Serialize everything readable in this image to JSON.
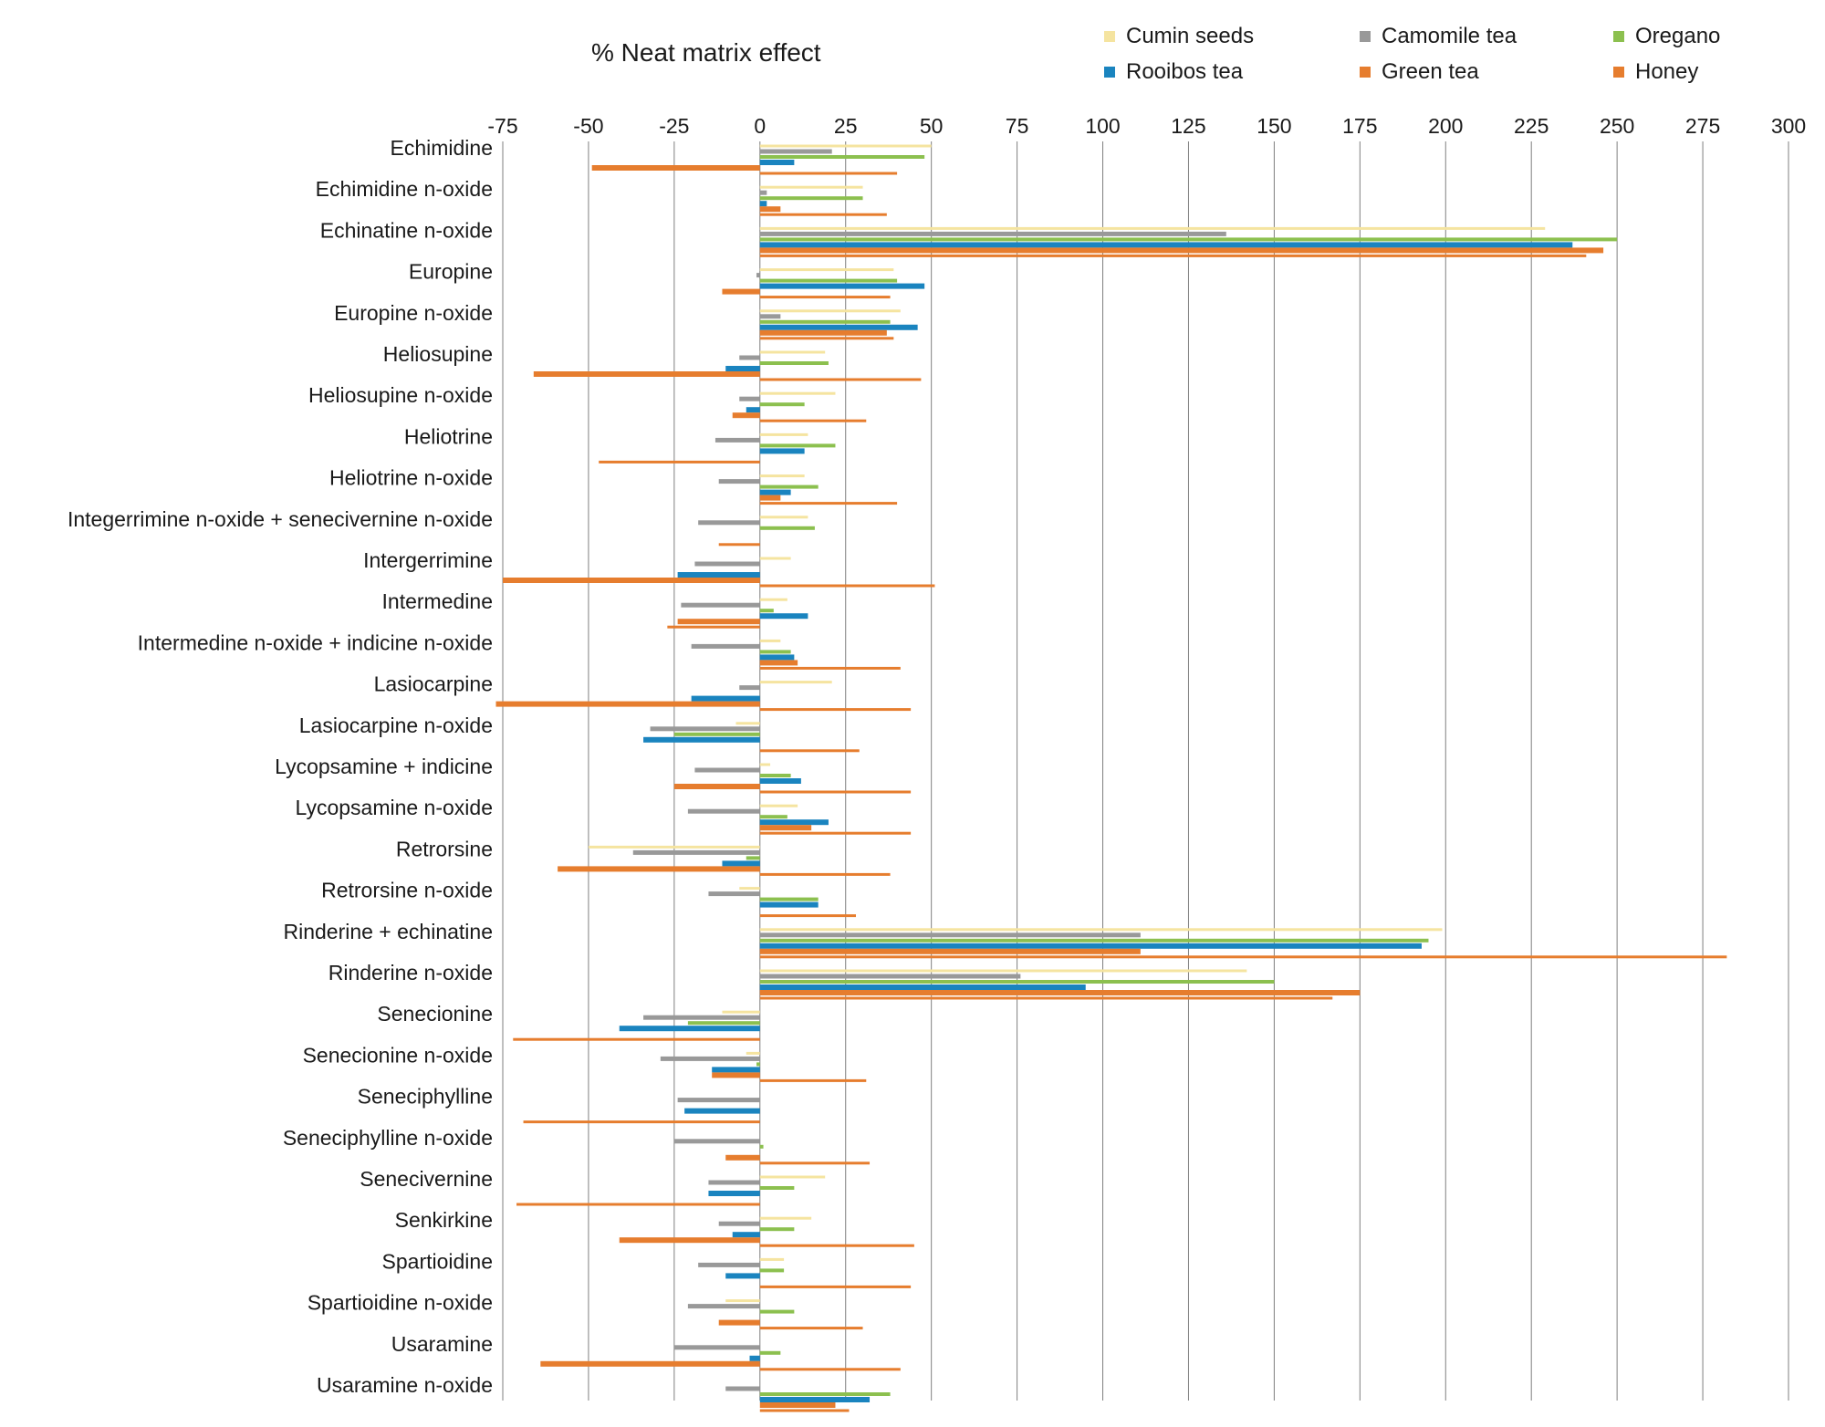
{
  "chart_data": {
    "type": "bar",
    "orientation": "horizontal",
    "title": "% Neat matrix effect",
    "xlabel": "",
    "ylabel": "",
    "xlim": [
      -75,
      300
    ],
    "xticks": [
      -75,
      -50,
      -25,
      0,
      25,
      50,
      75,
      100,
      125,
      150,
      175,
      200,
      225,
      250,
      275,
      300
    ],
    "xtick_labels": [
      "-75",
      "-50",
      "-25",
      "0",
      "25",
      "50",
      "75",
      "100",
      "125",
      "150",
      "175",
      "200",
      "225",
      "250",
      "275",
      "300"
    ],
    "grid": "vertical",
    "legend_position": "top-right",
    "categories": [
      "Echimidine",
      "Echimidine n-oxide",
      "Echinatine n-oxide",
      "Europine",
      "Europine n-oxide",
      "Heliosupine",
      "Heliosupine n-oxide",
      "Heliotrine",
      "Heliotrine n-oxide",
      "Integerrimine n-oxide + senecivernine n-oxide",
      "Intergerrimine",
      "Intermedine",
      "Intermedine n-oxide + indicine n-oxide",
      "Lasiocarpine",
      "Lasiocarpine n-oxide",
      "Lycopsamine + indicine",
      "Lycopsamine n-oxide",
      "Retrorsine",
      "Retrorsine n-oxide",
      "Rinderine + echinatine",
      "Rinderine n-oxide",
      "Senecionine",
      "Senecionine n-oxide",
      "Seneciphylline",
      "Seneciphylline n-oxide",
      "Senecivernine",
      "Senkirkine",
      "Spartioidine",
      "Spartioidine n-oxide",
      "Usaramine",
      "Usaramine n-oxide"
    ],
    "series": [
      {
        "name": "Cumin seeds",
        "color": "#f5e4a0",
        "values": [
          50,
          30,
          229,
          39,
          41,
          19,
          22,
          14,
          13,
          14,
          9,
          8,
          6,
          21,
          -7,
          3,
          11,
          -50,
          -6,
          199,
          142,
          -11,
          -4,
          0,
          0,
          19,
          15,
          7,
          -10,
          0,
          0
        ]
      },
      {
        "name": "Camomile tea",
        "color": "#999999",
        "values": [
          21,
          2,
          136,
          -1,
          6,
          -6,
          -6,
          -13,
          -12,
          -18,
          -19,
          -23,
          -20,
          -6,
          -32,
          -19,
          -21,
          -37,
          -15,
          111,
          76,
          -34,
          -29,
          -24,
          -25,
          -15,
          -12,
          -18,
          -21,
          -25,
          -10
        ]
      },
      {
        "name": "Oregano",
        "color": "#8cc04f",
        "values": [
          48,
          30,
          250,
          40,
          38,
          20,
          13,
          22,
          17,
          16,
          0,
          4,
          9,
          0,
          -25,
          9,
          8,
          -4,
          17,
          195,
          150,
          -21,
          -1,
          0,
          1,
          10,
          10,
          7,
          10,
          6,
          38
        ]
      },
      {
        "name": "Rooibos tea",
        "color": "#1a84bf",
        "values": [
          10,
          2,
          237,
          48,
          46,
          -10,
          -4,
          13,
          9,
          0,
          -24,
          14,
          10,
          -20,
          -34,
          12,
          20,
          -11,
          17,
          193,
          95,
          -41,
          -14,
          -22,
          0,
          -15,
          -8,
          -10,
          0,
          -3,
          32
        ]
      },
      {
        "name": "Green tea",
        "color": "#e67d2e",
        "values": [
          -49,
          6,
          246,
          -11,
          37,
          -66,
          -8,
          0,
          6,
          0,
          -75,
          -24,
          11,
          -77,
          0,
          -25,
          15,
          -59,
          0,
          111,
          175,
          0,
          -14,
          0,
          -10,
          0,
          -41,
          0,
          -12,
          -64,
          22
        ]
      },
      {
        "name": "Honey",
        "color": "#e67d2e",
        "values": [
          40,
          37,
          241,
          38,
          39,
          47,
          31,
          -47,
          40,
          -12,
          51,
          -27,
          41,
          44,
          29,
          44,
          44,
          38,
          28,
          282,
          167,
          -72,
          31,
          -69,
          32,
          -71,
          45,
          44,
          30,
          41,
          26
        ]
      }
    ]
  },
  "legend": {
    "items": [
      {
        "label": "Cumin seeds",
        "color": "#f5e4a0"
      },
      {
        "label": "Camomile tea",
        "color": "#999999"
      },
      {
        "label": "Oregano",
        "color": "#8cc04f"
      },
      {
        "label": "Rooibos tea",
        "color": "#1a84bf"
      },
      {
        "label": "Green tea",
        "color": "#e67d2e"
      },
      {
        "label": "Honey",
        "color": "#e67d2e"
      }
    ]
  }
}
